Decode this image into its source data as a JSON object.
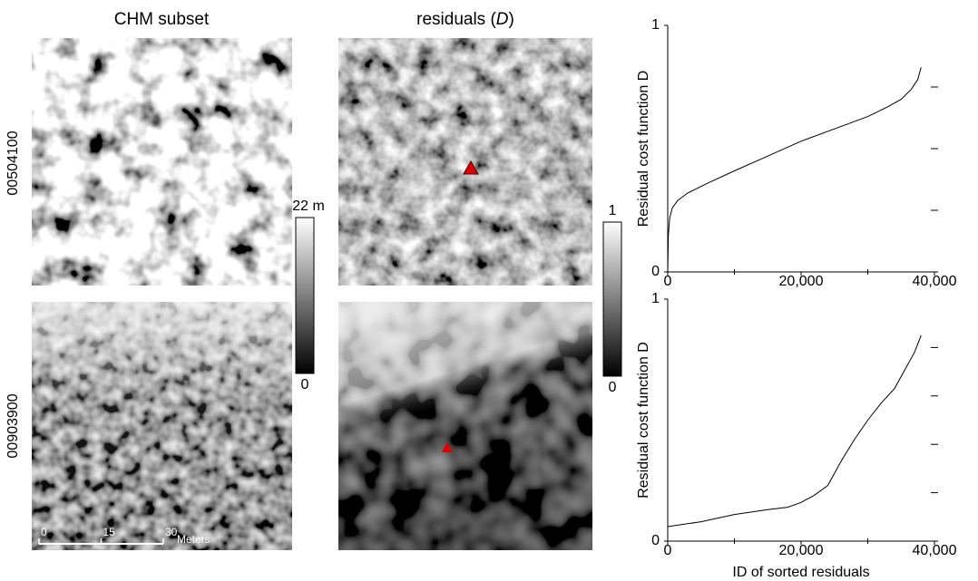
{
  "figure": {
    "col1_title": "CHM subset",
    "col2_title": {
      "open": "residuals (",
      "var": "D",
      "close": ")"
    },
    "row_labels": [
      "00504100",
      "00903900"
    ],
    "colorbar1": {
      "top_label": "22 m",
      "bottom_label": "0"
    },
    "colorbar2": {
      "top_label": "1",
      "bottom_label": "0"
    },
    "scale_bar": {
      "ticks": [
        0,
        15,
        30
      ],
      "unit": "Meters"
    }
  },
  "chart_data": [
    {
      "type": "line",
      "ylabel": "Residual cost function D",
      "color": "#000000",
      "x": [
        0,
        100,
        300,
        700,
        1500,
        3000,
        6000,
        10000,
        15000,
        20000,
        25000,
        30000,
        33000,
        35000,
        36500,
        37500,
        38000
      ],
      "values": [
        0,
        0.15,
        0.22,
        0.26,
        0.29,
        0.32,
        0.36,
        0.41,
        0.47,
        0.53,
        0.58,
        0.63,
        0.67,
        0.7,
        0.74,
        0.78,
        0.83
      ],
      "xlim": [
        0,
        40000
      ],
      "xticks": [
        0,
        {
          "value": 20000,
          "label": "20,000"
        },
        {
          "value": 40000,
          "label": "40,000"
        }
      ],
      "minor_xticks": [
        10000,
        30000
      ],
      "ylim": [
        0,
        1
      ],
      "yticks": [
        0,
        1
      ],
      "minor_yticks": [
        0.25,
        0.5,
        0.75
      ]
    },
    {
      "type": "line",
      "ylabel": "Residual cost function D",
      "xlabel": "ID of sorted residuals",
      "color": "#000000",
      "x": [
        0,
        5000,
        10000,
        15000,
        18000,
        20000,
        22000,
        24000,
        26000,
        28000,
        30000,
        32000,
        34000,
        35000,
        36000,
        37000,
        38000
      ],
      "values": [
        0.06,
        0.08,
        0.11,
        0.13,
        0.14,
        0.16,
        0.19,
        0.23,
        0.33,
        0.42,
        0.5,
        0.57,
        0.63,
        0.68,
        0.73,
        0.78,
        0.85
      ],
      "xlim": [
        0,
        40000
      ],
      "xticks": [
        0,
        {
          "value": 20000,
          "label": "20,000"
        },
        {
          "value": 40000,
          "label": "40,000"
        }
      ],
      "minor_xticks": [
        10000,
        30000
      ],
      "ylim": [
        0,
        1
      ],
      "yticks": [
        0,
        1
      ],
      "minor_yticks": [
        0.2,
        0.4,
        0.6,
        0.8
      ]
    }
  ]
}
